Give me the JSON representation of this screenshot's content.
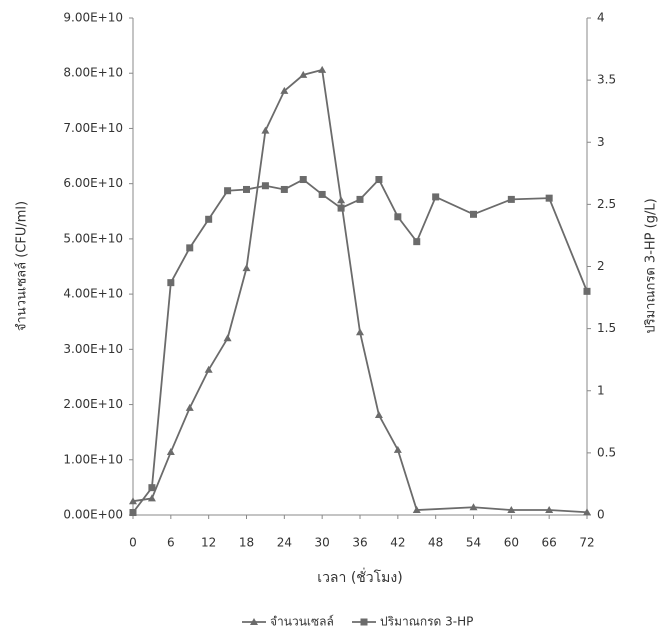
{
  "chart_data": {
    "type": "line",
    "xlabel": "เวลา (ชั่วโมง)",
    "ylabel": "จำนวนเซลล์ (CFU/ml)",
    "y2label": "ปริมาณกรด 3-HP (g/L)",
    "xlim": [
      0,
      72
    ],
    "xticks": [
      0,
      6,
      12,
      18,
      24,
      30,
      36,
      42,
      48,
      54,
      60,
      66,
      72
    ],
    "ylim": [
      0,
      90000000000
    ],
    "yticks": [
      {
        "value": 0,
        "label": "0.00E+00"
      },
      {
        "value": 10000000000,
        "label": "1.00E+10"
      },
      {
        "value": 20000000000,
        "label": "2.00E+10"
      },
      {
        "value": 30000000000,
        "label": "3.00E+10"
      },
      {
        "value": 40000000000,
        "label": "4.00E+10"
      },
      {
        "value": 50000000000,
        "label": "5.00E+10"
      },
      {
        "value": 60000000000,
        "label": "6.00E+10"
      },
      {
        "value": 70000000000,
        "label": "7.00E+10"
      },
      {
        "value": 80000000000,
        "label": "8.00E+10"
      },
      {
        "value": 90000000000,
        "label": "9.00E+10"
      }
    ],
    "y2lim": [
      0,
      4
    ],
    "y2ticks": [
      0,
      0.5,
      1,
      1.5,
      2,
      2.5,
      3,
      3.5,
      4
    ],
    "legend": "bottom",
    "series": [
      {
        "name": "จำนวนเซลล์",
        "color": "#6b6b6b",
        "marker": "triangle",
        "x": [
          0,
          3,
          6,
          9,
          12,
          15,
          18,
          21,
          24,
          27,
          30,
          33,
          36,
          39,
          42,
          45,
          54,
          60,
          66,
          72
        ],
        "values": [
          2500000000,
          3000000000,
          11400000000,
          19400000000,
          26300000000,
          32000000000,
          44700000000,
          69600000000,
          76800000000,
          79700000000,
          80600000000,
          57000000000,
          33100000000,
          18100000000,
          11800000000,
          900000000,
          1400000000,
          900000000,
          900000000,
          500000000
        ]
      },
      {
        "name": "ปริมาณกรด 3-HP",
        "color": "#6b6b6b",
        "marker": "square",
        "axis": "y2",
        "x": [
          0,
          3,
          6,
          9,
          12,
          15,
          18,
          21,
          24,
          27,
          30,
          33,
          36,
          39,
          42,
          45,
          48,
          54,
          60,
          66,
          72
        ],
        "values": [
          0.02,
          0.22,
          1.87,
          2.15,
          2.38,
          2.61,
          2.62,
          2.65,
          2.62,
          2.7,
          2.58,
          2.47,
          2.54,
          2.7,
          2.4,
          2.2,
          2.56,
          2.42,
          2.54,
          2.55,
          1.8
        ]
      }
    ]
  }
}
